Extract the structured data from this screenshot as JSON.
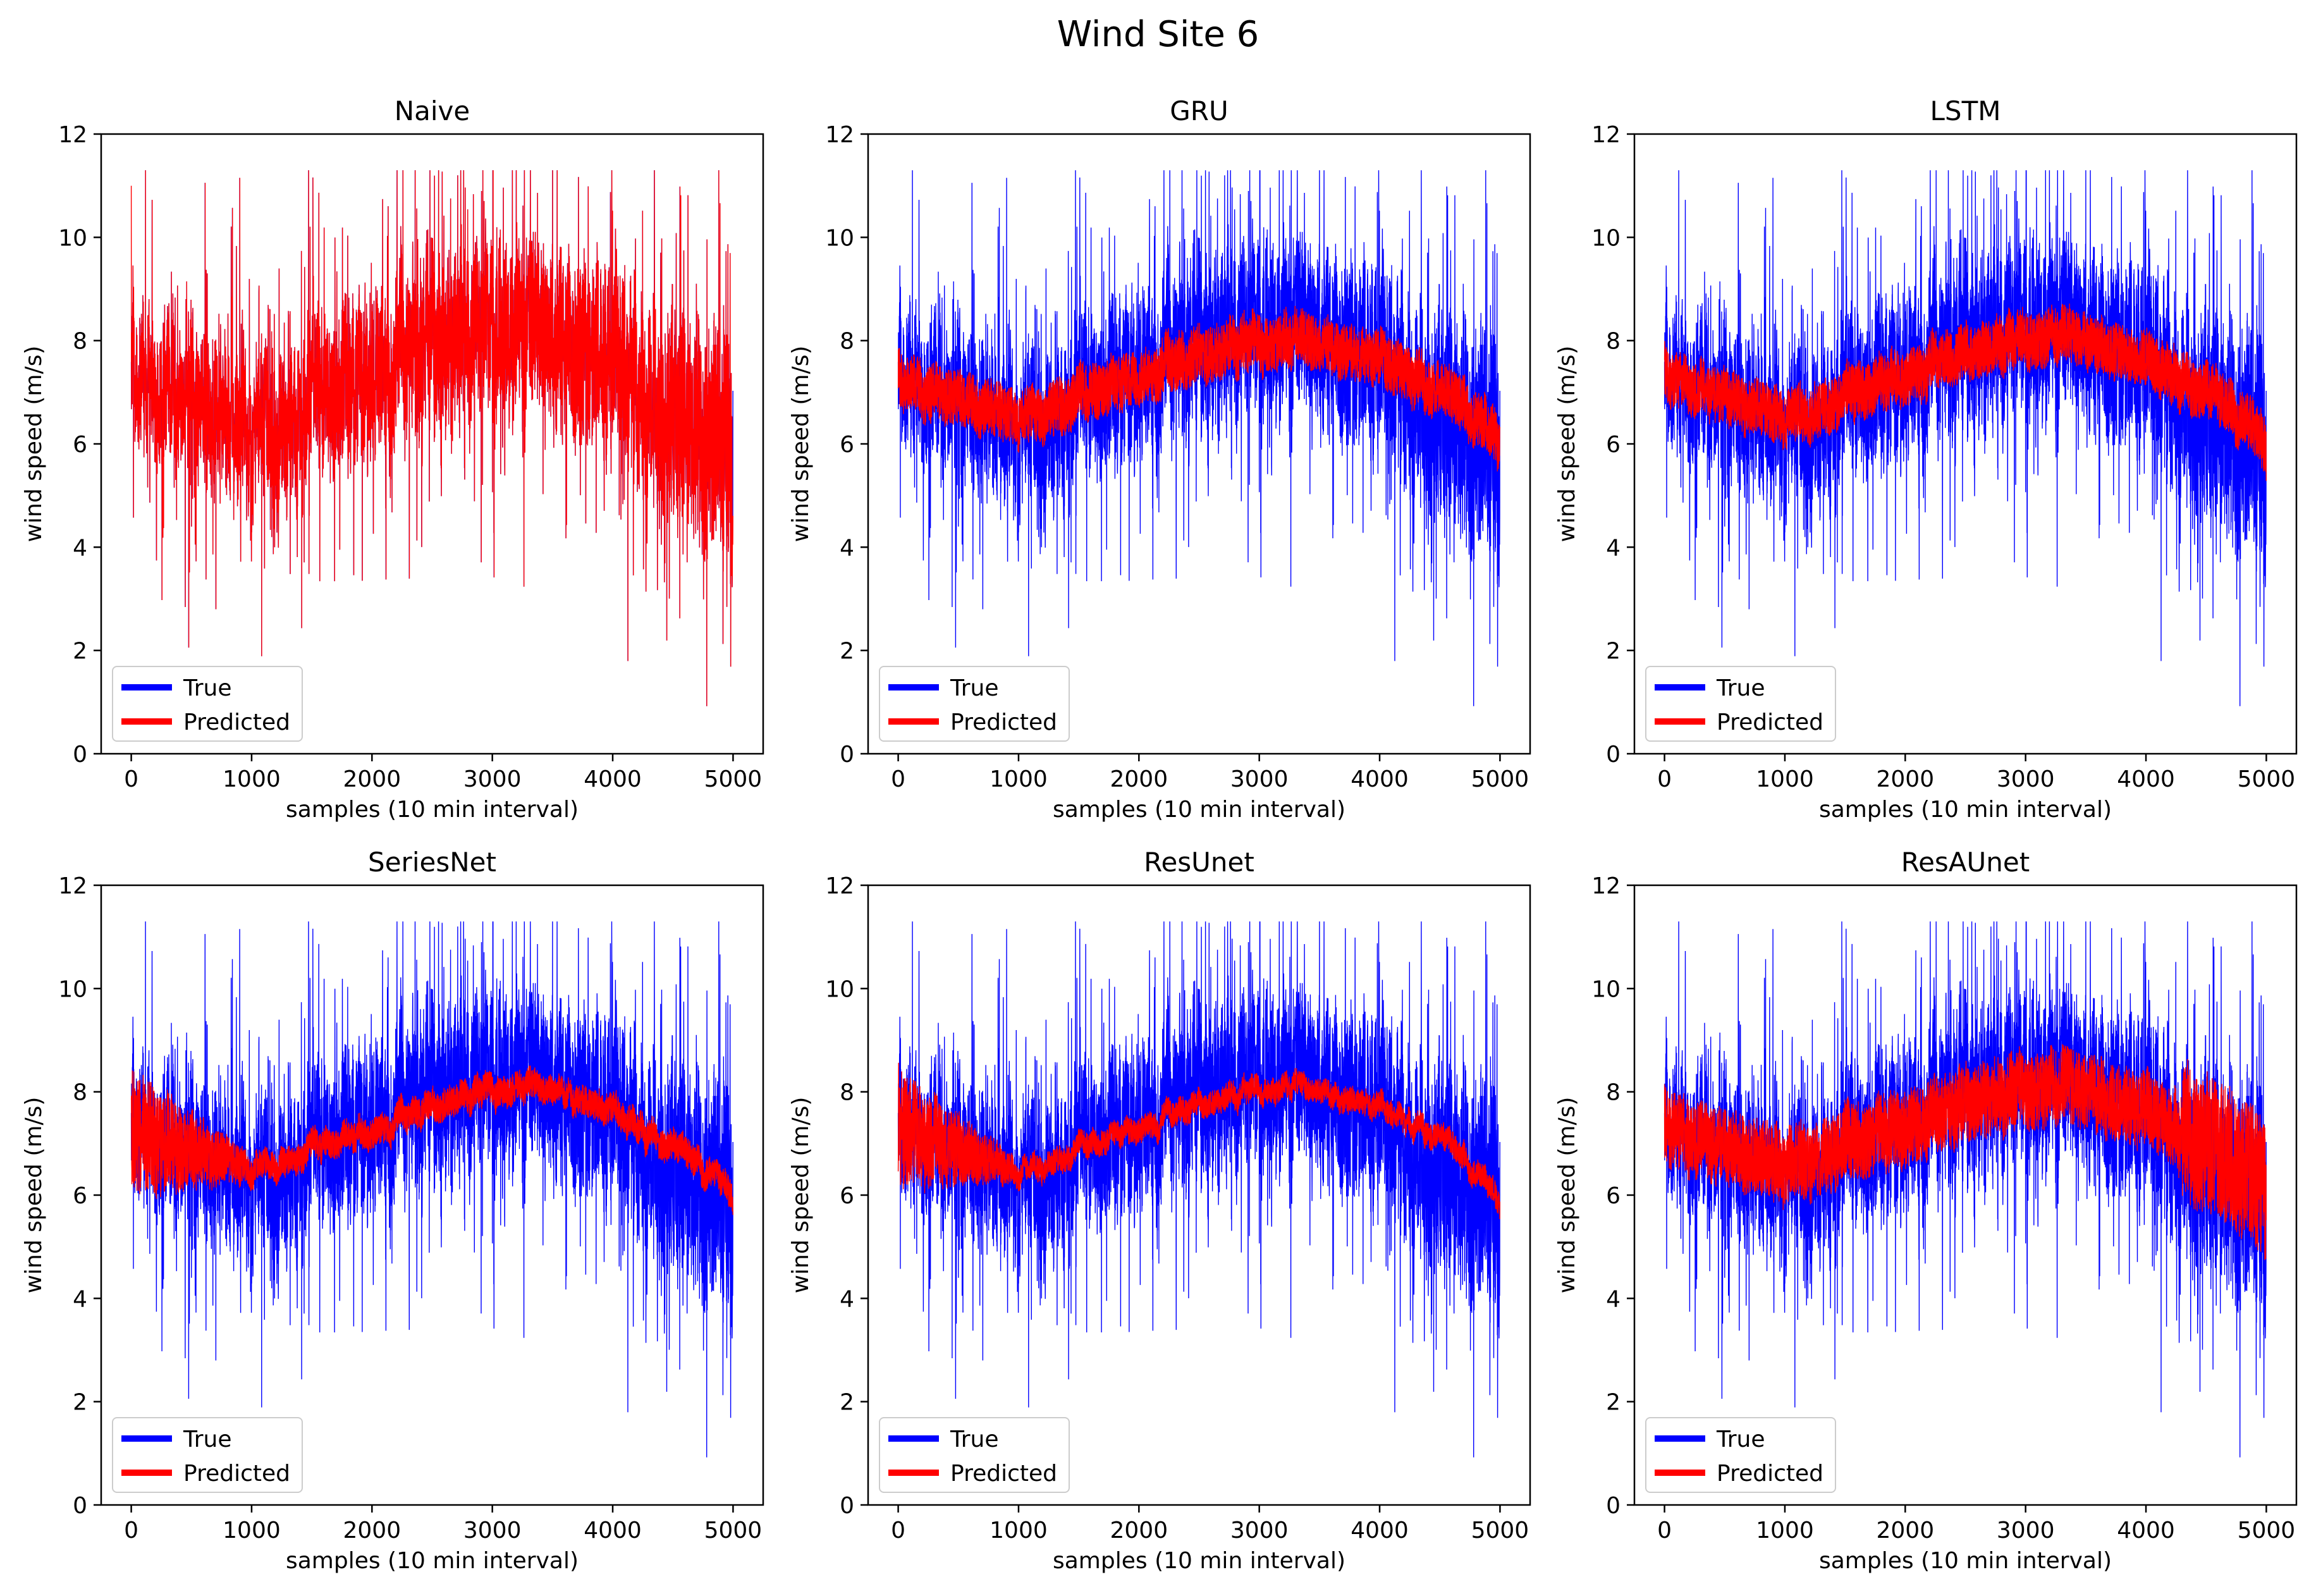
{
  "figure": {
    "title": "Wind Site 6"
  },
  "colors": {
    "true": "#0000ff",
    "predicted": "#ff0000",
    "axes": "#000000"
  },
  "chart_data": [
    {
      "type": "line",
      "title": "Naive",
      "xlabel": "samples (10 min interval)",
      "ylabel": "wind speed (m/s)",
      "xlim": [
        -250,
        5250
      ],
      "ylim": [
        0,
        12
      ],
      "xticks": [
        0,
        1000,
        2000,
        3000,
        4000,
        5000
      ],
      "yticks": [
        0,
        2,
        4,
        6,
        8,
        10,
        12
      ],
      "n_samples": 5000,
      "legend": {
        "position": "lower-left",
        "entries": [
          "True",
          "Predicted"
        ]
      },
      "pred_model": "naive",
      "series": [
        {
          "name": "True",
          "color": "#0000ff",
          "description": "measured wind speed, 6-11 m/s typical, min ~0.9, max ~11.3"
        },
        {
          "name": "Predicted",
          "color": "#ff0000",
          "description": "persistence forecast (true series shifted by one sample)"
        }
      ]
    },
    {
      "type": "line",
      "title": "GRU",
      "xlabel": "samples (10 min interval)",
      "ylabel": "wind speed (m/s)",
      "xlim": [
        -250,
        5250
      ],
      "ylim": [
        0,
        12
      ],
      "xticks": [
        0,
        1000,
        2000,
        3000,
        4000,
        5000
      ],
      "yticks": [
        0,
        2,
        4,
        6,
        8,
        10,
        12
      ],
      "n_samples": 5000,
      "legend": {
        "position": "lower-left",
        "entries": [
          "True",
          "Predicted"
        ]
      },
      "pred_model": "smooth-noisy",
      "pred_band": 0.55,
      "series": [
        {
          "name": "True",
          "color": "#0000ff"
        },
        {
          "name": "Predicted",
          "color": "#ff0000",
          "trend": [
            [
              0,
              7.2
            ],
            [
              1000,
              6.6
            ],
            [
              2000,
              7.3
            ],
            [
              3000,
              7.9
            ],
            [
              3500,
              7.9
            ],
            [
              4500,
              7.4
            ],
            [
              5000,
              6.2
            ]
          ]
        }
      ]
    },
    {
      "type": "line",
      "title": "LSTM",
      "xlabel": "samples (10 min interval)",
      "ylabel": "wind speed (m/s)",
      "xlim": [
        -250,
        5250
      ],
      "ylim": [
        0,
        12
      ],
      "xticks": [
        0,
        1000,
        2000,
        3000,
        4000,
        5000
      ],
      "yticks": [
        0,
        2,
        4,
        6,
        8,
        10,
        12
      ],
      "n_samples": 5000,
      "legend": {
        "position": "lower-left",
        "entries": [
          "True",
          "Predicted"
        ]
      },
      "pred_model": "smooth-noisy",
      "pred_band": 0.55,
      "series": [
        {
          "name": "True",
          "color": "#0000ff"
        },
        {
          "name": "Predicted",
          "color": "#ff0000",
          "trend": [
            [
              0,
              7.3
            ],
            [
              1000,
              6.6
            ],
            [
              2000,
              7.3
            ],
            [
              3000,
              8.0
            ],
            [
              3500,
              8.0
            ],
            [
              4500,
              7.3
            ],
            [
              5000,
              6.2
            ]
          ]
        }
      ]
    },
    {
      "type": "line",
      "title": "SeriesNet",
      "xlabel": "samples (10 min interval)",
      "ylabel": "wind speed (m/s)",
      "xlim": [
        -250,
        5250
      ],
      "ylim": [
        0,
        12
      ],
      "xticks": [
        0,
        1000,
        2000,
        3000,
        4000,
        5000
      ],
      "yticks": [
        0,
        2,
        4,
        6,
        8,
        10,
        12
      ],
      "n_samples": 5000,
      "legend": {
        "position": "lower-left",
        "entries": [
          "True",
          "Predicted"
        ]
      },
      "pred_model": "smooth-early-noisy",
      "pred_band": 0.3,
      "series": [
        {
          "name": "True",
          "color": "#0000ff"
        },
        {
          "name": "Predicted",
          "color": "#ff0000",
          "trend": [
            [
              0,
              7.2
            ],
            [
              1000,
              6.6
            ],
            [
              2000,
              7.2
            ],
            [
              3000,
              8.0
            ],
            [
              3600,
              8.0
            ],
            [
              4500,
              7.2
            ],
            [
              5000,
              6.2
            ]
          ]
        }
      ]
    },
    {
      "type": "line",
      "title": "ResUnet",
      "xlabel": "samples (10 min interval)",
      "ylabel": "wind speed (m/s)",
      "xlim": [
        -250,
        5250
      ],
      "ylim": [
        0,
        12
      ],
      "xticks": [
        0,
        1000,
        2000,
        3000,
        4000,
        5000
      ],
      "yticks": [
        0,
        2,
        4,
        6,
        8,
        10,
        12
      ],
      "n_samples": 5000,
      "legend": {
        "position": "lower-left",
        "entries": [
          "True",
          "Predicted"
        ]
      },
      "pred_model": "smooth-early-noisy",
      "pred_band": 0.25,
      "series": [
        {
          "name": "True",
          "color": "#0000ff"
        },
        {
          "name": "Predicted",
          "color": "#ff0000",
          "trend": [
            [
              0,
              7.3
            ],
            [
              1000,
              6.5
            ],
            [
              2000,
              7.3
            ],
            [
              3000,
              8.0
            ],
            [
              3500,
              8.0
            ],
            [
              4500,
              7.5
            ],
            [
              5000,
              6.0
            ]
          ]
        }
      ]
    },
    {
      "type": "line",
      "title": "ResAUnet",
      "xlabel": "samples (10 min interval)",
      "ylabel": "wind speed (m/s)",
      "xlim": [
        -250,
        5250
      ],
      "ylim": [
        0,
        12
      ],
      "xticks": [
        0,
        1000,
        2000,
        3000,
        4000,
        5000
      ],
      "yticks": [
        0,
        2,
        4,
        6,
        8,
        10,
        12
      ],
      "n_samples": 5000,
      "legend": {
        "position": "lower-left",
        "entries": [
          "True",
          "Predicted"
        ]
      },
      "pred_model": "smooth-noisy",
      "pred_band": 0.75,
      "series": [
        {
          "name": "True",
          "color": "#0000ff"
        },
        {
          "name": "Predicted",
          "color": "#ff0000",
          "trend": [
            [
              0,
              7.3
            ],
            [
              1000,
              6.7
            ],
            [
              2000,
              7.3
            ],
            [
              3000,
              8.0
            ],
            [
              3500,
              8.0
            ],
            [
              4500,
              7.3
            ],
            [
              5000,
              6.3
            ]
          ]
        }
      ]
    }
  ]
}
